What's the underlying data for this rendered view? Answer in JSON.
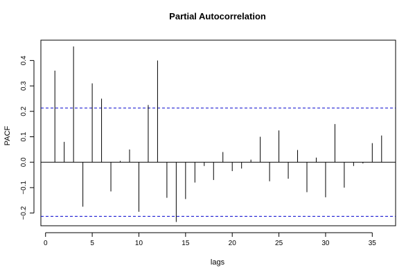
{
  "chart_data": {
    "type": "bar",
    "title": "Partial Autocorrelation",
    "xlabel": "lags",
    "ylabel": "PACF",
    "xlim": [
      -0.5,
      37.5
    ],
    "ylim": [
      -0.25,
      0.48
    ],
    "x_ticks": [
      0,
      5,
      10,
      15,
      20,
      25,
      30,
      35
    ],
    "y_ticks": [
      -0.2,
      -0.1,
      0.0,
      0.1,
      0.2,
      0.3,
      0.4
    ],
    "y_tick_labels": [
      "−0.2",
      "−0.1",
      "0.0",
      "0.1",
      "0.2",
      "0.3",
      "0.4"
    ],
    "confidence_bound": 0.213,
    "lags": [
      1,
      2,
      3,
      4,
      5,
      6,
      7,
      8,
      9,
      10,
      11,
      12,
      13,
      14,
      15,
      16,
      17,
      18,
      19,
      20,
      21,
      22,
      23,
      24,
      25,
      26,
      27,
      28,
      29,
      30,
      31,
      32,
      33,
      34,
      35,
      36
    ],
    "values": [
      0.36,
      0.08,
      0.455,
      -0.175,
      0.31,
      0.25,
      -0.115,
      0.005,
      0.05,
      -0.195,
      0.225,
      0.4,
      -0.14,
      -0.235,
      -0.145,
      -0.08,
      -0.015,
      -0.07,
      0.04,
      -0.035,
      -0.025,
      0.01,
      0.1,
      -0.075,
      0.125,
      -0.065,
      0.048,
      -0.118,
      0.018,
      -0.138,
      0.15,
      -0.1,
      -0.015,
      -0.005,
      0.075,
      0.105
    ],
    "grid": false,
    "colors": {
      "bars": "#000000",
      "bounds": "#0000cc",
      "zero_line": "#000000"
    }
  }
}
